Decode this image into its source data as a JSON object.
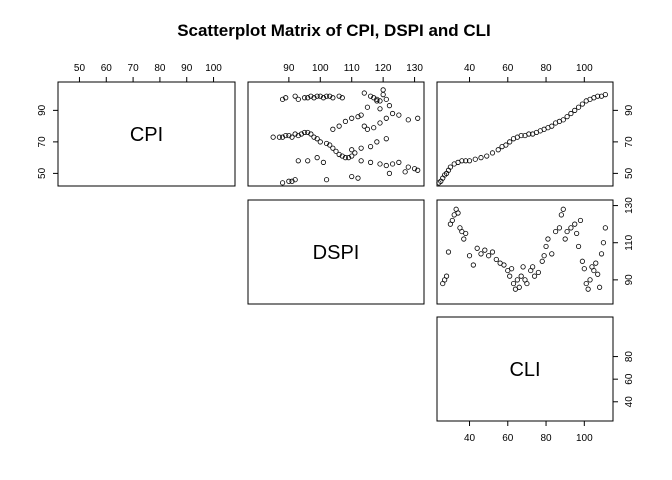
{
  "title": "Scatterplot Matrix of CPI, DSPI and CLI",
  "chart_data": [
    {
      "type": "label",
      "label": "CPI",
      "xlim": [
        42,
        108
      ],
      "xticks": [
        50,
        60,
        70,
        80,
        90,
        100
      ],
      "x_axis": "top",
      "ylim": [
        42,
        108
      ],
      "yticks": [
        50,
        70,
        90
      ],
      "y_axis": "left"
    },
    {
      "type": "scatter",
      "xlim": [
        77,
        133
      ],
      "xticks": [
        90,
        100,
        110,
        120,
        130
      ],
      "x_axis": "top",
      "ylim": [
        42,
        108
      ],
      "x": [
        88,
        89,
        92,
        93,
        95,
        96,
        97,
        98,
        99,
        100,
        101,
        102,
        103,
        104,
        106,
        107,
        116,
        117,
        118,
        119,
        120,
        121,
        114,
        120,
        85,
        87,
        88,
        89,
        90,
        91,
        92,
        93,
        94,
        95,
        96,
        97,
        98,
        99,
        100,
        102,
        103,
        104,
        105,
        106,
        107,
        108,
        109,
        110,
        111,
        104,
        106,
        108,
        110,
        112,
        113,
        114,
        115,
        117,
        119,
        121,
        123,
        125,
        110,
        113,
        116,
        118,
        121,
        93,
        96,
        99,
        101,
        113,
        116,
        119,
        121,
        123,
        125,
        128,
        130,
        131,
        127,
        122,
        88,
        90,
        91,
        92,
        102,
        110,
        112,
        128,
        131,
        122,
        118,
        119,
        115
      ],
      "y": [
        97,
        98,
        99,
        97,
        98,
        98,
        99,
        98,
        99,
        99,
        98,
        99,
        99,
        98,
        99,
        98,
        99,
        98,
        97,
        96,
        100,
        97,
        101,
        103,
        73,
        73,
        73,
        74,
        74,
        73,
        75,
        74,
        75,
        76,
        76,
        75,
        73,
        72,
        70,
        69,
        68,
        66,
        64,
        62,
        61,
        60,
        60,
        61,
        63,
        78,
        80,
        83,
        85,
        86,
        87,
        80,
        78,
        79,
        82,
        85,
        88,
        87,
        65,
        66,
        67,
        70,
        72,
        58,
        58,
        60,
        57,
        58,
        57,
        56,
        55,
        56,
        57,
        54,
        53,
        52,
        51,
        50,
        44,
        45,
        45,
        46,
        46,
        48,
        47,
        84,
        85,
        93,
        96,
        91,
        92
      ]
    },
    {
      "type": "scatter",
      "xlim": [
        23,
        115
      ],
      "xticks": [
        40,
        60,
        80,
        100
      ],
      "x_axis": "top",
      "ylim": [
        42,
        108
      ],
      "yticks": [
        50,
        70,
        90
      ],
      "y_axis": "right",
      "x": [
        24,
        25,
        26,
        27,
        28,
        29,
        30,
        32,
        34,
        36,
        38,
        40,
        43,
        46,
        49,
        52,
        55,
        57,
        59,
        61,
        63,
        65,
        67,
        69,
        71,
        73,
        75,
        77,
        79,
        81,
        83,
        85,
        87,
        89,
        91,
        93,
        95,
        97,
        99,
        101,
        103,
        105,
        107,
        109,
        111
      ],
      "y": [
        44,
        45,
        47,
        49,
        50,
        52,
        54,
        56,
        57,
        58,
        58,
        58,
        59,
        60,
        61,
        63,
        65,
        67,
        68,
        70,
        72,
        73,
        74,
        74,
        75,
        75,
        76,
        77,
        78,
        79,
        80,
        82,
        83,
        84,
        86,
        88,
        90,
        92,
        94,
        96,
        97,
        98,
        99,
        99,
        100
      ]
    },
    {
      "type": "label",
      "label": "DSPI"
    },
    {
      "type": "scatter",
      "xlim": [
        23,
        115
      ],
      "ylim": [
        77,
        133
      ],
      "yticks": [
        90,
        110,
        130
      ],
      "y_axis": "right",
      "x": [
        26,
        27,
        28,
        29,
        30,
        31,
        32,
        33,
        34,
        35,
        36,
        37,
        38,
        40,
        42,
        44,
        46,
        48,
        50,
        52,
        54,
        56,
        58,
        60,
        61,
        62,
        63,
        64,
        65,
        66,
        67,
        68,
        69,
        70,
        72,
        73,
        74,
        76,
        78,
        79,
        80,
        81,
        83,
        85,
        87,
        88,
        89,
        90,
        91,
        93,
        95,
        96,
        97,
        98,
        99,
        100,
        101,
        102,
        103,
        104,
        105,
        106,
        107,
        108,
        109,
        110,
        111
      ],
      "y": [
        88,
        90,
        92,
        105,
        120,
        122,
        125,
        128,
        126,
        118,
        116,
        112,
        115,
        103,
        98,
        107,
        104,
        106,
        103,
        105,
        101,
        99,
        98,
        95,
        92,
        96,
        88,
        85,
        90,
        86,
        92,
        97,
        90,
        88,
        95,
        97,
        92,
        94,
        100,
        103,
        108,
        112,
        104,
        116,
        118,
        125,
        128,
        112,
        116,
        118,
        120,
        115,
        108,
        122,
        100,
        96,
        88,
        85,
        90,
        97,
        95,
        99,
        93,
        86,
        104,
        110,
        118
      ]
    },
    {
      "type": "label",
      "label": "CLI",
      "xlim": [
        23,
        115
      ],
      "xticks": [
        40,
        60,
        80,
        100
      ],
      "x_axis": "bottom",
      "ylim": [
        23,
        115
      ],
      "yticks": [
        40,
        60,
        80
      ],
      "y_axis": "right"
    }
  ]
}
